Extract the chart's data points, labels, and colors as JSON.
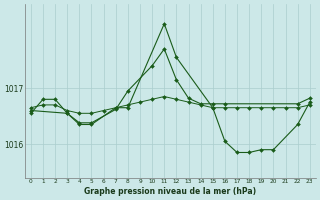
{
  "title": "Graphe pression niveau de la mer (hPa)",
  "bg_color": "#cce8e8",
  "line_color": "#1a5c1a",
  "grid_color": "#aacece",
  "x_labels": [
    "0",
    "1",
    "2",
    "3",
    "4",
    "5",
    "6",
    "7",
    "8",
    "9",
    "10",
    "11",
    "12",
    "13",
    "14",
    "15",
    "16",
    "17",
    "18",
    "19",
    "20",
    "21",
    "22",
    "23"
  ],
  "yticks": [
    1016,
    1017
  ],
  "ylim": [
    1015.4,
    1018.5
  ],
  "xlim": [
    -0.5,
    23.5
  ],
  "figsize": [
    3.2,
    2.0
  ],
  "dpi": 100,
  "line1": [
    1016.65,
    1016.7,
    1016.7,
    1016.6,
    1016.55,
    1016.55,
    1016.6,
    1016.65,
    1016.7,
    1016.75,
    1016.8,
    1016.85,
    1016.8,
    1016.75,
    1016.7,
    1016.65,
    1016.65,
    1016.65,
    1016.65,
    1016.65,
    1016.65,
    1016.65,
    1016.65,
    1016.7
  ],
  "line2_x": [
    0,
    3,
    4,
    5,
    7,
    8,
    11,
    12,
    15,
    16,
    17,
    18,
    19,
    20,
    22,
    23
  ],
  "line2_y": [
    1016.6,
    1016.55,
    1016.35,
    1016.35,
    1016.65,
    1016.65,
    1018.15,
    1017.55,
    1016.65,
    1016.05,
    1015.85,
    1015.85,
    1015.9,
    1015.9,
    1016.35,
    1016.75
  ],
  "line3_x": [
    0,
    1,
    2,
    3,
    4,
    5,
    7,
    8,
    10,
    11,
    12,
    13,
    14,
    15,
    16,
    22,
    23
  ],
  "line3_y": [
    1016.55,
    1016.8,
    1016.8,
    1016.55,
    1016.38,
    1016.38,
    1016.62,
    1016.95,
    1017.4,
    1017.7,
    1017.15,
    1016.82,
    1016.72,
    1016.72,
    1016.72,
    1016.72,
    1016.82
  ]
}
